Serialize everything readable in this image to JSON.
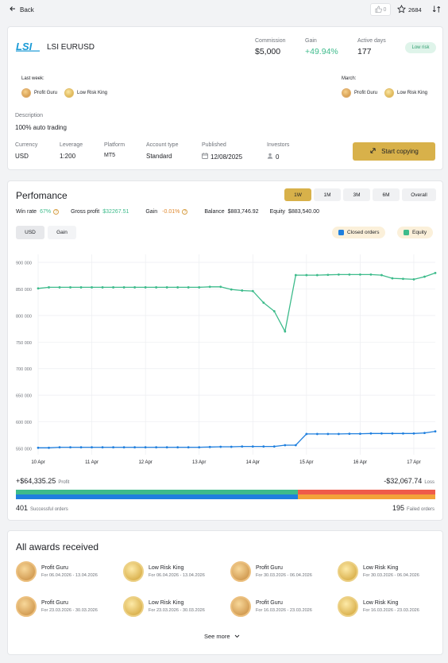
{
  "topbar": {
    "back_label": "Back",
    "likes": "0",
    "stars": "2684"
  },
  "header": {
    "logo_text": "LSI",
    "name": "LSI EURUSD",
    "stats": [
      {
        "label": "Commission",
        "value": "$5,000"
      },
      {
        "label": "Gain",
        "value": "+49.94%"
      },
      {
        "label": "Active days",
        "value": "177"
      }
    ],
    "risk_badge": "Low risk",
    "last_week_label": "Last week:",
    "last_week_awards": [
      "Profit Guru",
      "Low Risk King"
    ],
    "month_label": "March:",
    "month_awards": [
      "Profit Guru",
      "Low Risk King"
    ],
    "description_label": "Description",
    "description": "100% auto trading",
    "details": [
      {
        "label": "Currency",
        "value": "USD"
      },
      {
        "label": "Leverage",
        "value": "1:200"
      },
      {
        "label": "Platform",
        "value": "MT5"
      },
      {
        "label": "Account type",
        "value": "Standard"
      },
      {
        "label": "Published",
        "value": "12/08/2025"
      },
      {
        "label": "Investors",
        "value": "0"
      }
    ],
    "copy_button": "Start copying"
  },
  "performance": {
    "title": "Perfomance",
    "ranges": [
      "1W",
      "1M",
      "3M",
      "6M",
      "Overall"
    ],
    "active_range": "1W",
    "metrics": {
      "win_rate_label": "Win rate",
      "win_rate": "67%",
      "gross_profit_label": "Gross profit",
      "gross_profit": "$32267.51",
      "gain_label": "Gain",
      "gain": "-0.01%",
      "balance_label": "Balance",
      "balance": "$883,746.92",
      "equity_label": "Equity",
      "equity": "$883,540.00"
    },
    "toggles": [
      "USD",
      "Gain"
    ],
    "legend": [
      "Closed orders",
      "Equity"
    ],
    "profit_value": "+$64,335.25",
    "profit_label": "Profit",
    "loss_value": "-$32,067.74",
    "loss_label": "Loss",
    "successful_count": "401",
    "successful_label": "Successful orders",
    "failed_count": "195",
    "failed_label": "Failed orders",
    "success_ratio": 0.673
  },
  "chart_data": {
    "type": "line",
    "y_ticks": [
      "900 000",
      "850 000",
      "800 000",
      "750 000",
      "700 000",
      "650 000",
      "600 000",
      "550 000"
    ],
    "y_tick_values": [
      900000,
      850000,
      800000,
      750000,
      700000,
      650000,
      600000,
      550000
    ],
    "x_ticks": [
      "10 Apr",
      "11 Apr",
      "12 Apr",
      "13 Apr",
      "14 Apr",
      "15 Apr",
      "16 Apr",
      "17 Apr"
    ],
    "xlim": [
      0,
      7.4
    ],
    "ylim": [
      538000,
      915000
    ],
    "colors": {
      "equity": "#3dbb8b",
      "closed": "#1f7fde"
    },
    "series": [
      {
        "name": "Equity",
        "x": [
          0,
          0.2,
          0.4,
          0.6,
          0.8,
          1.0,
          1.2,
          1.4,
          1.6,
          1.8,
          2.0,
          2.2,
          2.4,
          2.6,
          2.8,
          3.0,
          3.2,
          3.4,
          3.6,
          3.8,
          4.0,
          4.2,
          4.4,
          4.6,
          4.8,
          5.0,
          5.2,
          5.4,
          5.6,
          5.8,
          6.0,
          6.2,
          6.4,
          6.6,
          6.8,
          7.0,
          7.2,
          7.4
        ],
        "values": [
          851000,
          853000,
          853000,
          853000,
          853000,
          853000,
          853000,
          853000,
          853000,
          853000,
          853000,
          853000,
          853000,
          853000,
          853000,
          853000,
          854000,
          854000,
          849000,
          847000,
          846000,
          824000,
          808000,
          770000,
          876000,
          876000,
          876000,
          876500,
          877000,
          877000,
          877000,
          877000,
          876000,
          870000,
          869000,
          868000,
          873000,
          880000
        ]
      },
      {
        "name": "Closed orders",
        "x": [
          0,
          0.2,
          0.4,
          0.6,
          0.8,
          1.0,
          1.2,
          1.4,
          1.6,
          1.8,
          2.0,
          2.2,
          2.4,
          2.6,
          2.8,
          3.0,
          3.2,
          3.4,
          3.6,
          3.8,
          4.0,
          4.2,
          4.4,
          4.6,
          4.8,
          5.0,
          5.2,
          5.4,
          5.6,
          5.8,
          6.0,
          6.2,
          6.4,
          6.6,
          6.8,
          7.0,
          7.2,
          7.4
        ],
        "values": [
          551000,
          551000,
          552000,
          552000,
          552000,
          552000,
          552000,
          552000,
          552000,
          552000,
          552000,
          552000,
          552000,
          552000,
          552000,
          552000,
          552500,
          553000,
          553000,
          553500,
          553500,
          553500,
          553500,
          556000,
          556000,
          577000,
          577000,
          577000,
          577000,
          577500,
          577500,
          578000,
          578000,
          578000,
          578000,
          578000,
          579000,
          582000
        ]
      }
    ]
  },
  "awards": {
    "title": "All awards received",
    "items": [
      {
        "name": "Profit Guru",
        "dates": "For 06.04.2026 - 13.04.2026",
        "kind": "guru"
      },
      {
        "name": "Low Risk King",
        "dates": "For 06.04.2026 - 13.04.2026",
        "kind": "king"
      },
      {
        "name": "Profit Guru",
        "dates": "For 30.03.2026 - 06.04.2026",
        "kind": "guru"
      },
      {
        "name": "Low Risk King",
        "dates": "For 30.03.2026 - 06.04.2026",
        "kind": "king"
      },
      {
        "name": "Profit Guru",
        "dates": "For 23.03.2026 - 30.03.2026",
        "kind": "guru"
      },
      {
        "name": "Low Risk King",
        "dates": "For 23.03.2026 - 30.03.2026",
        "kind": "king"
      },
      {
        "name": "Profit Guru",
        "dates": "For 16.03.2026 - 23.03.2026",
        "kind": "guru"
      },
      {
        "name": "Low Risk King",
        "dates": "For 16.03.2026 - 23.03.2026",
        "kind": "king"
      }
    ],
    "see_more": "See more"
  }
}
